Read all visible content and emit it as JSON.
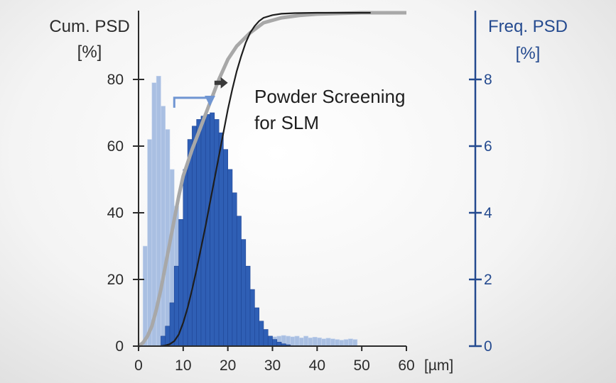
{
  "chart_data": {
    "type": "bar",
    "title": "",
    "x_unit_label": "[µm]",
    "xlim": [
      0,
      60
    ],
    "x_ticks": [
      0,
      10,
      20,
      30,
      40,
      50,
      60
    ],
    "left_axis": {
      "label_line1": "Cum. PSD",
      "label_line2": "[%]",
      "ylim": [
        0,
        100
      ],
      "ticks": [
        0,
        20,
        40,
        60,
        80
      ]
    },
    "right_axis": {
      "label_line1": "Freq. PSD",
      "label_line2": "[%]",
      "ylim": [
        0,
        10
      ],
      "ticks": [
        0,
        2,
        4,
        6,
        8
      ]
    },
    "annotation_line1": "Powder Screening",
    "annotation_line2": "for SLM",
    "bin_width": 1,
    "series": [
      {
        "axis": "right",
        "color": "#a9bfe2",
        "bins_start": [
          1,
          2,
          3,
          4,
          5,
          6,
          7,
          8,
          9,
          10,
          11,
          12,
          13,
          14,
          15,
          16,
          17,
          18,
          19,
          20,
          21,
          22,
          23,
          24,
          25,
          26,
          27,
          28,
          29,
          30,
          31,
          32,
          33,
          34,
          35,
          36,
          37,
          38,
          39,
          40,
          41,
          42,
          43,
          44,
          45,
          46,
          47,
          48
        ],
        "values": [
          3.0,
          6.2,
          7.9,
          8.1,
          7.2,
          6.5,
          5.3,
          4.2,
          3.4,
          2.9,
          2.3,
          1.9,
          1.6,
          1.3,
          1.1,
          0.95,
          0.8,
          0.7,
          0.6,
          0.55,
          0.5,
          0.45,
          0.4,
          0.35,
          0.35,
          0.32,
          0.3,
          0.3,
          0.28,
          0.28,
          0.3,
          0.32,
          0.3,
          0.28,
          0.3,
          0.25,
          0.3,
          0.25,
          0.27,
          0.25,
          0.22,
          0.24,
          0.22,
          0.2,
          0.18,
          0.2,
          0.22,
          0.2
        ]
      },
      {
        "axis": "right",
        "color": "#2f5fb5",
        "bins_start": [
          5,
          6,
          7,
          8,
          9,
          10,
          11,
          12,
          13,
          14,
          15,
          16,
          17,
          18,
          19,
          20,
          21,
          22,
          23,
          24,
          25,
          26,
          27,
          28,
          29,
          30,
          31,
          32,
          33
        ],
        "values": [
          0.3,
          0.6,
          1.3,
          2.4,
          3.8,
          5.3,
          6.2,
          6.6,
          6.8,
          6.9,
          6.95,
          7.0,
          6.8,
          6.4,
          5.9,
          5.3,
          4.6,
          3.9,
          3.2,
          2.4,
          1.7,
          1.15,
          0.75,
          0.5,
          0.3,
          0.2,
          0.12,
          0.07,
          0.04
        ]
      },
      {
        "type": "line",
        "axis": "left",
        "color": "#a8a8a8",
        "x": [
          0,
          1,
          2,
          3,
          4,
          5,
          6,
          7,
          8,
          9,
          10,
          12,
          14,
          16,
          18,
          20,
          22,
          25,
          28,
          32,
          36,
          40,
          45,
          50,
          55,
          60
        ],
        "y": [
          0,
          1,
          3,
          6,
          11,
          17,
          24,
          31,
          38,
          45,
          51,
          59,
          66,
          73,
          80,
          86,
          90,
          94,
          97,
          98.5,
          99.2,
          99.6,
          99.8,
          100,
          100,
          100
        ]
      },
      {
        "type": "line",
        "axis": "left",
        "color": "#1e1e1e",
        "x": [
          5,
          6,
          7,
          8,
          9,
          10,
          11,
          12,
          13,
          14,
          15,
          16,
          17,
          18,
          19,
          20,
          21,
          22,
          23,
          24,
          25,
          26,
          27,
          28,
          30,
          32,
          35,
          40,
          45,
          50,
          52
        ],
        "y": [
          0,
          0.2,
          0.6,
          1.5,
          3.5,
          7,
          11.5,
          17,
          23,
          29.5,
          36,
          43,
          50,
          57,
          64,
          71,
          77,
          82.5,
          87,
          91,
          94,
          96,
          97.5,
          98.5,
          99.3,
          99.7,
          99.9,
          100,
          100,
          100,
          100
        ]
      }
    ],
    "arrows": [
      {
        "color": "#6f95d2",
        "x_from": 8,
        "x_to": 16,
        "y_right": 7.45
      },
      {
        "color": "#3a3a3a",
        "x_from": 17,
        "x_to": 20,
        "y_left": 79
      }
    ]
  }
}
